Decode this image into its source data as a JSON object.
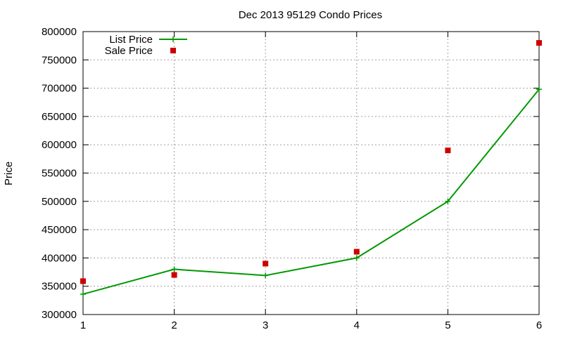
{
  "chart_data": {
    "type": "line",
    "title": "Dec 2013 95129 Condo Prices",
    "xlabel": "",
    "ylabel": "Price",
    "xlim": [
      1,
      6
    ],
    "ylim": [
      300000,
      800000
    ],
    "xticks": [
      1,
      2,
      3,
      4,
      5,
      6
    ],
    "yticks": [
      300000,
      350000,
      400000,
      450000,
      500000,
      550000,
      600000,
      650000,
      700000,
      750000,
      800000
    ],
    "grid": true,
    "legend": "top-left",
    "series": [
      {
        "name": "List Price",
        "style": "line+cross",
        "color": "#009900",
        "x": [
          1,
          2,
          3,
          4,
          5,
          6
        ],
        "y": [
          336000,
          380000,
          369000,
          400000,
          500000,
          698000
        ]
      },
      {
        "name": "Sale Price",
        "style": "square-points",
        "color": "#cc0000",
        "x": [
          1,
          2,
          3,
          4,
          5,
          6
        ],
        "y": [
          359000,
          370000,
          390000,
          411000,
          590000,
          780000
        ]
      }
    ]
  }
}
